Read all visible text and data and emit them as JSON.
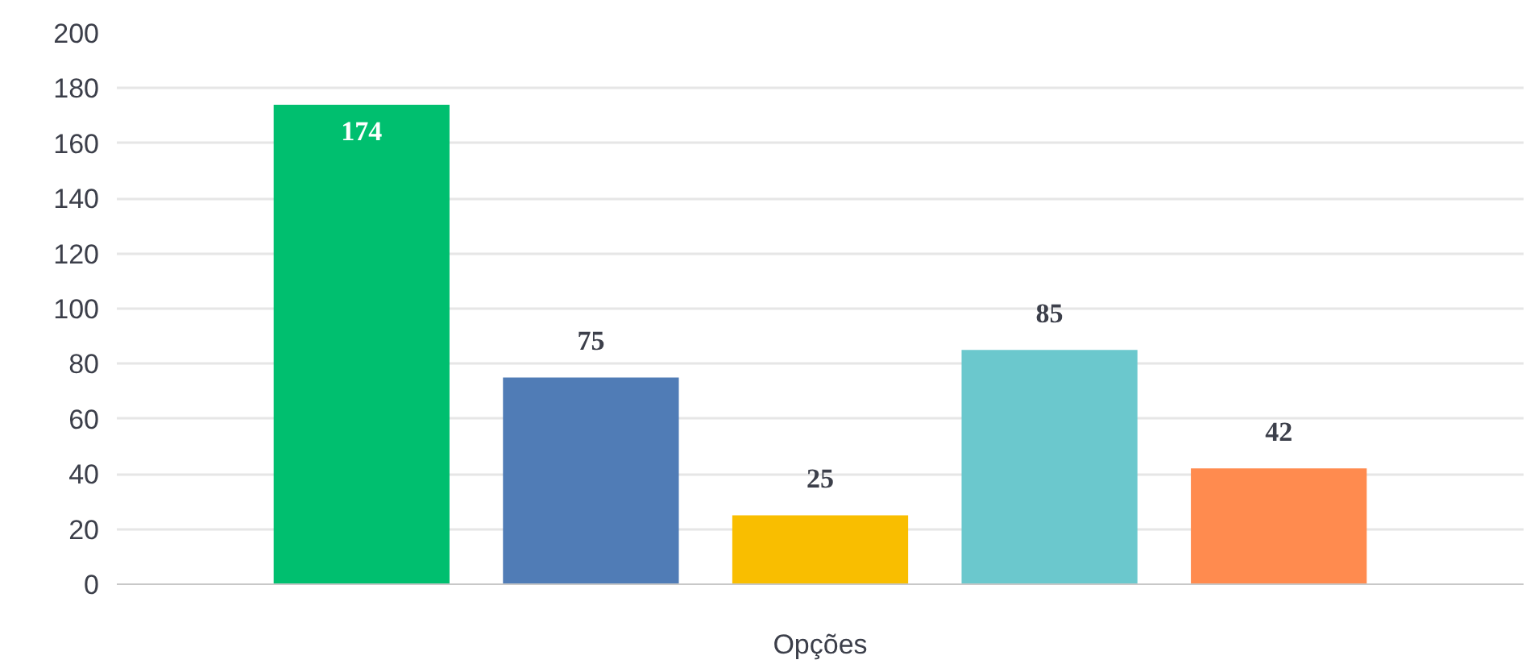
{
  "chart_data": {
    "type": "bar",
    "categories": [
      "Opções"
    ],
    "series": [
      {
        "color": "#00bf6f",
        "values": [
          174
        ]
      },
      {
        "color": "#507cb6",
        "values": [
          75
        ]
      },
      {
        "color": "#f9be00",
        "values": [
          25
        ]
      },
      {
        "color": "#6bc8cd",
        "values": [
          85
        ]
      },
      {
        "color": "#ff8b4f",
        "values": [
          42
        ]
      }
    ],
    "ylim": [
      0,
      200
    ],
    "yticks": [
      0,
      20,
      40,
      60,
      80,
      100,
      120,
      140,
      160,
      180,
      200
    ],
    "grid": "y",
    "data_labels": true
  }
}
